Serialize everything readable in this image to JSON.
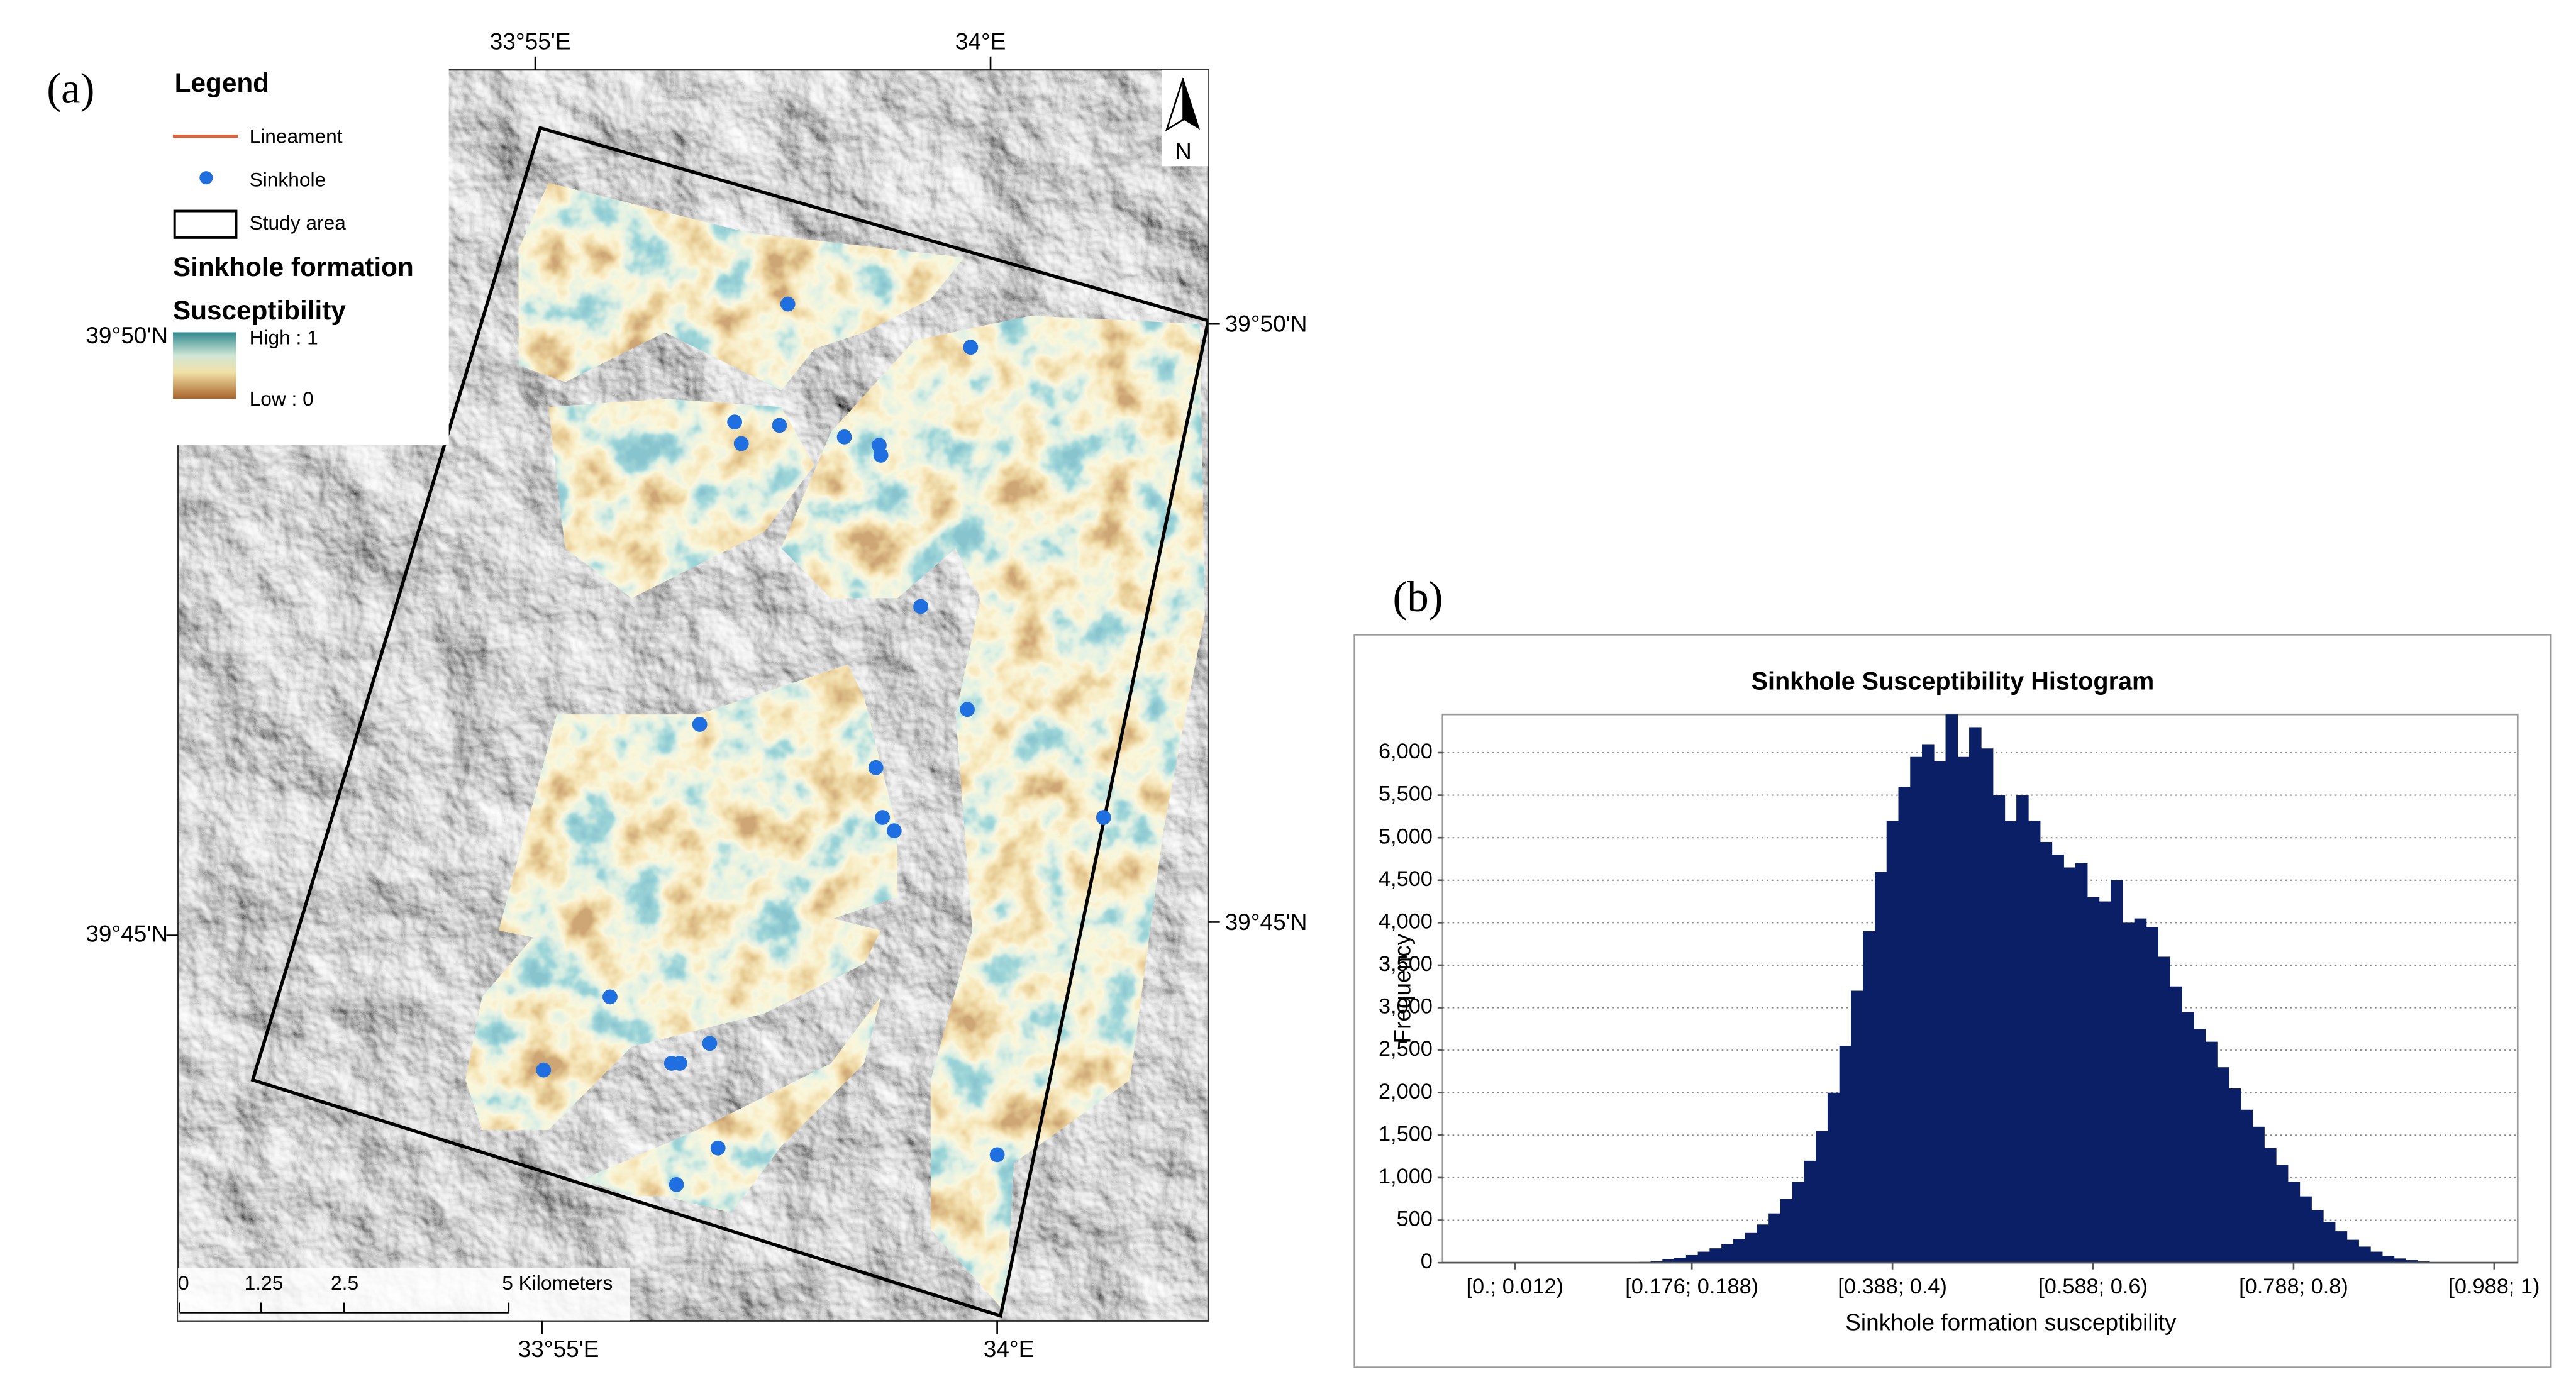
{
  "panel_labels": [
    "(a)",
    "(b)"
  ],
  "map": {
    "top_labels": [
      "33°55'E",
      "34°E"
    ],
    "bottom_labels": [
      "33°55'E",
      "34°E"
    ],
    "left_labels": [
      "39°50'N",
      "39°45'N"
    ],
    "right_labels": [
      "39°50'N",
      "39°45'N"
    ],
    "north": "N",
    "scale_labels": [
      "0",
      "1.25",
      "2.5",
      "5 Kilometers"
    ],
    "legend": {
      "title": "Legend",
      "items": [
        "Lineament",
        "Sinkhole",
        "Study area"
      ],
      "ramp_title": [
        "Sinkhole formation",
        "Susceptibility"
      ],
      "high": "High : 1",
      "low": "Low : 0"
    }
  },
  "chart_data": {
    "type": "histogram",
    "title": "Sinkhole Susceptibility Histogram",
    "x_label": "Sinkhole formation susceptibility",
    "y_label": "Frequency",
    "color": "#0b1f66",
    "grid": true,
    "categories": [
      "[0.; 0.012)",
      null,
      null,
      null,
      null,
      null,
      null,
      null,
      null,
      null,
      null,
      null,
      null,
      null,
      null,
      "[0.176; 0.188)",
      null,
      null,
      null,
      null,
      null,
      null,
      null,
      null,
      null,
      null,
      null,
      null,
      null,
      null,
      null,
      null,
      "[0.388; 0.4)",
      null,
      null,
      null,
      null,
      null,
      null,
      null,
      null,
      null,
      null,
      null,
      null,
      null,
      null,
      null,
      null,
      "[0.588; 0.6)",
      null,
      null,
      null,
      null,
      null,
      null,
      null,
      null,
      null,
      null,
      null,
      null,
      null,
      null,
      null,
      null,
      "[0.788; 0.8)",
      null,
      null,
      null,
      null,
      null,
      null,
      null,
      null,
      null,
      null,
      null,
      null,
      null,
      null,
      null,
      null,
      "[0.988; 1)"
    ],
    "values": [
      0,
      0,
      0,
      0,
      0,
      0,
      0,
      0,
      0,
      0,
      5,
      10,
      20,
      40,
      60,
      90,
      130,
      170,
      220,
      280,
      350,
      450,
      580,
      750,
      950,
      1200,
      1550,
      2000,
      2550,
      3200,
      3900,
      4600,
      5200,
      5600,
      5950,
      6100,
      5900,
      6450,
      5950,
      6300,
      6050,
      5500,
      5200,
      5500,
      5200,
      4950,
      4800,
      4650,
      4700,
      4300,
      4250,
      4500,
      4000,
      4050,
      3950,
      3600,
      3250,
      2950,
      2750,
      2600,
      2300,
      2050,
      1800,
      1600,
      1350,
      1150,
      950,
      780,
      620,
      480,
      370,
      270,
      190,
      130,
      80,
      50,
      30,
      15,
      8,
      4,
      2,
      1,
      0,
      0
    ],
    "ylim": [
      0,
      6450
    ],
    "yticks": [
      0,
      500,
      {
        "value": 1000,
        "label": "1,000"
      },
      {
        "value": 1500,
        "label": "1,500"
      },
      {
        "value": 2000,
        "label": "2,000"
      },
      {
        "value": 2500,
        "label": "2,500"
      },
      {
        "value": 3000,
        "label": "3,000"
      },
      {
        "value": 3500,
        "label": "3,500"
      },
      {
        "value": 4000,
        "label": "4,000"
      },
      {
        "value": 4500,
        "label": "4,500"
      },
      {
        "value": 5000,
        "label": "5,000"
      },
      {
        "value": 5500,
        "label": "5,500"
      },
      {
        "value": 6000,
        "label": "6,000"
      }
    ]
  }
}
